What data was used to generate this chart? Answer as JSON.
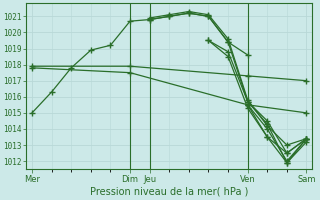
{
  "bg_color": "#cce9e8",
  "grid_color": "#b8d8d7",
  "line_color": "#2a6e2a",
  "text_color": "#2a6e2a",
  "xlabel": "Pression niveau de la mer( hPa )",
  "ylim": [
    1011.5,
    1021.8
  ],
  "yticks": [
    1012,
    1013,
    1014,
    1015,
    1016,
    1017,
    1018,
    1019,
    1020,
    1021
  ],
  "xtick_labels": [
    "Mer",
    "Dim",
    "Jeu",
    "Ven",
    "Sam"
  ],
  "xtick_positions": [
    0,
    5,
    6,
    11,
    14
  ],
  "vlines_dark": [
    5,
    6,
    11
  ],
  "vlines_light": [
    0,
    14
  ],
  "series": [
    {
      "x": [
        0,
        1,
        2,
        3,
        4,
        5,
        6,
        7,
        8,
        9,
        10,
        11
      ],
      "y": [
        1015.0,
        1016.3,
        1017.8,
        1018.9,
        1019.2,
        1020.7,
        1020.8,
        1021.0,
        1021.2,
        1021.0,
        1019.4,
        1018.6
      ]
    },
    {
      "x": [
        0,
        5,
        11,
        14
      ],
      "y": [
        1017.9,
        1017.9,
        1017.3,
        1017.0
      ]
    },
    {
      "x": [
        0,
        5,
        11,
        14
      ],
      "y": [
        1017.8,
        1017.5,
        1015.5,
        1015.0
      ]
    },
    {
      "x": [
        6,
        7,
        8,
        9,
        10,
        11,
        12,
        13,
        14
      ],
      "y": [
        1020.8,
        1021.0,
        1021.2,
        1021.0,
        1019.4,
        1015.7,
        1014.5,
        1012.5,
        1013.4
      ]
    },
    {
      "x": [
        6,
        7,
        8,
        9,
        10,
        11,
        12,
        13,
        14
      ],
      "y": [
        1020.9,
        1021.1,
        1021.3,
        1021.1,
        1019.6,
        1015.8,
        1014.2,
        1013.0,
        1013.4
      ]
    },
    {
      "x": [
        9,
        10,
        11,
        12,
        13,
        14
      ],
      "y": [
        1019.5,
        1018.8,
        1015.7,
        1014.3,
        1011.9,
        1013.4
      ]
    },
    {
      "x": [
        9,
        10,
        11,
        12,
        13,
        14
      ],
      "y": [
        1019.5,
        1018.5,
        1015.3,
        1013.5,
        1011.9,
        1013.2
      ]
    },
    {
      "x": [
        11,
        12,
        13,
        14
      ],
      "y": [
        1015.5,
        1014.0,
        1012.0,
        1013.4
      ]
    },
    {
      "x": [
        11,
        12,
        13,
        14
      ],
      "y": [
        1015.5,
        1013.5,
        1012.5,
        1013.4
      ]
    }
  ],
  "marker": "+",
  "markersize": 4,
  "markeredgewidth": 1.0,
  "linewidth": 0.9
}
